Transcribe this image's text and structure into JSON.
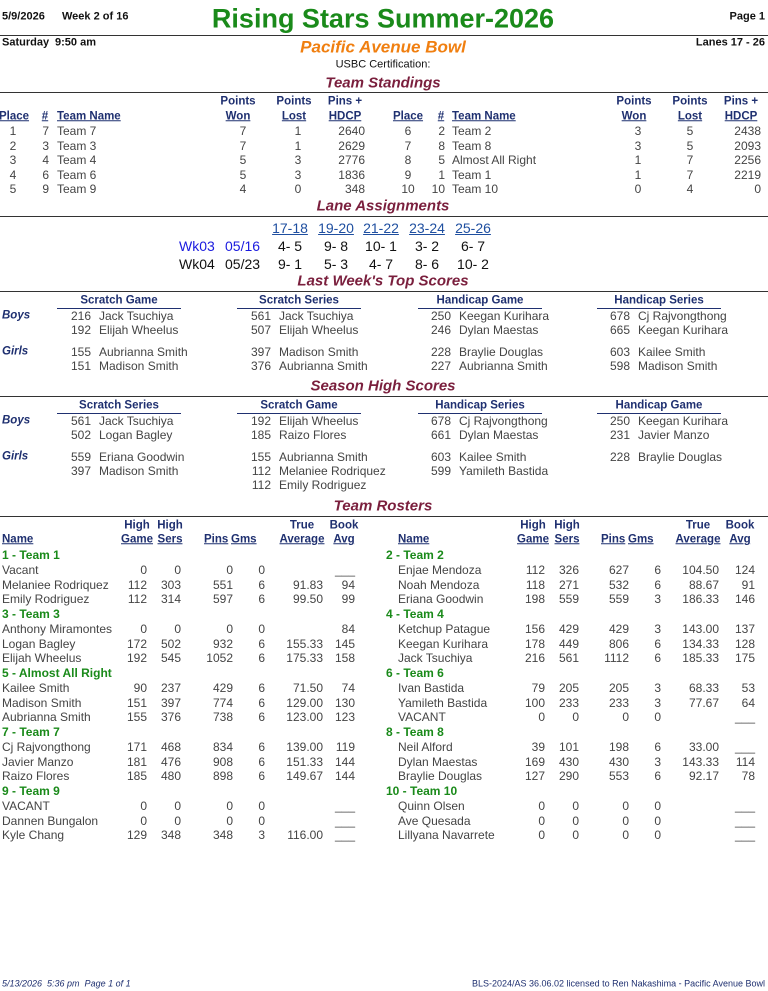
{
  "header": {
    "date": "5/9/2026",
    "week": "Week 2 of 16",
    "title": "Rising Stars Summer-2026",
    "page": "Page 1",
    "day": "Saturday",
    "time": "9:50 am",
    "center": "Pacific Avenue Bowl",
    "lanes": "Lanes 17 - 26",
    "certification": "USBC Certification:"
  },
  "standings": {
    "title": "Team Standings",
    "headers": [
      [
        "Place"
      ],
      [
        "#"
      ],
      [
        "Team Name"
      ],
      [
        "Points",
        "Won"
      ],
      [
        "Points",
        "Lost"
      ],
      [
        "Pins +",
        "HDCP"
      ]
    ],
    "left": [
      [
        "1",
        "7",
        "Team 7",
        "7",
        "1",
        "2640"
      ],
      [
        "2",
        "3",
        "Team 3",
        "7",
        "1",
        "2629"
      ],
      [
        "3",
        "4",
        "Team 4",
        "5",
        "3",
        "2776"
      ],
      [
        "4",
        "6",
        "Team 6",
        "5",
        "3",
        "1836"
      ],
      [
        "5",
        "9",
        "Team 9",
        "4",
        "0",
        "348"
      ]
    ],
    "right": [
      [
        "6",
        "2",
        "Team 2",
        "3",
        "5",
        "2438"
      ],
      [
        "7",
        "8",
        "Team 8",
        "3",
        "5",
        "2093"
      ],
      [
        "8",
        "5",
        "Almost All Right",
        "1",
        "7",
        "2256"
      ],
      [
        "9",
        "1",
        "Team 1",
        "1",
        "7",
        "2219"
      ],
      [
        "10",
        "10",
        "Team 10",
        "0",
        "4",
        "0"
      ]
    ]
  },
  "lanes": {
    "title": "Lane Assignments",
    "headers": [
      "17-18",
      "19-20",
      "21-22",
      "23-24",
      "25-26"
    ],
    "rows": [
      {
        "week": "Wk03",
        "date": "05/16",
        "pairs": [
          "4- 5",
          "9- 8",
          "10- 1",
          "3- 2",
          "6- 7"
        ]
      },
      {
        "week": "Wk04",
        "date": "05/23",
        "pairs": [
          "9- 1",
          "5- 3",
          "4- 7",
          "8- 6",
          "10- 2"
        ]
      }
    ]
  },
  "last_week": {
    "title": "Last Week's Top Scores",
    "headers": [
      "Scratch Game",
      "Scratch Series",
      "Handicap Game",
      "Handicap Series"
    ],
    "groups": [
      {
        "label": "Boys",
        "columns": [
          [
            [
              "216",
              "Jack Tsuchiya"
            ],
            [
              "192",
              "Elijah Wheelus"
            ]
          ],
          [
            [
              "561",
              "Jack Tsuchiya"
            ],
            [
              "507",
              "Elijah Wheelus"
            ]
          ],
          [
            [
              "250",
              "Keegan Kurihara"
            ],
            [
              "246",
              "Dylan Maestas"
            ]
          ],
          [
            [
              "678",
              "Cj Rajvongthong"
            ],
            [
              "665",
              "Keegan Kurihara"
            ]
          ]
        ]
      },
      {
        "label": "Girls",
        "columns": [
          [
            [
              "155",
              "Aubrianna Smith"
            ],
            [
              "151",
              "Madison Smith"
            ]
          ],
          [
            [
              "397",
              "Madison Smith"
            ],
            [
              "376",
              "Aubrianna Smith"
            ]
          ],
          [
            [
              "228",
              "Braylie Douglas"
            ],
            [
              "227",
              "Aubrianna Smith"
            ]
          ],
          [
            [
              "603",
              "Kailee Smith"
            ],
            [
              "598",
              "Madison Smith"
            ]
          ]
        ]
      }
    ]
  },
  "season_high": {
    "title": "Season High Scores",
    "headers": [
      "Scratch Series",
      "Scratch Game",
      "Handicap Series",
      "Handicap Game"
    ],
    "groups": [
      {
        "label": "Boys",
        "columns": [
          [
            [
              "561",
              "Jack Tsuchiya"
            ],
            [
              "502",
              "Logan Bagley"
            ]
          ],
          [
            [
              "192",
              "Elijah Wheelus"
            ],
            [
              "185",
              "Raizo Flores"
            ]
          ],
          [
            [
              "678",
              "Cj Rajvongthong"
            ],
            [
              "661",
              "Dylan Maestas"
            ]
          ],
          [
            [
              "250",
              "Keegan Kurihara"
            ],
            [
              "231",
              "Javier Manzo"
            ]
          ]
        ]
      },
      {
        "label": "Girls",
        "columns": [
          [
            [
              "559",
              "Eriana Goodwin"
            ],
            [
              "397",
              "Madison Smith"
            ]
          ],
          [
            [
              "155",
              "Aubrianna Smith"
            ],
            [
              "112",
              "Melaniee Rodriquez"
            ],
            [
              "112",
              "Emily Rodriguez"
            ]
          ],
          [
            [
              "603",
              "Kailee Smith"
            ],
            [
              "599",
              "Yamileth Bastida"
            ]
          ],
          [
            [
              "228",
              "Braylie Douglas"
            ]
          ]
        ]
      }
    ]
  },
  "rosters": {
    "title": "Team Rosters",
    "headers": [
      [
        "Name"
      ],
      [
        "High",
        "Game"
      ],
      [
        "High",
        "Sers"
      ],
      [
        "Pins"
      ],
      [
        "Gms"
      ],
      [
        "True",
        "Average"
      ],
      [
        "Book",
        "Avg"
      ]
    ],
    "left": [
      {
        "team": "1 - Team 1",
        "players": [
          [
            "Vacant",
            "0",
            "0",
            "0",
            "0",
            null,
            "___"
          ],
          [
            "Melaniee Rodriquez",
            "112",
            "303",
            "551",
            "6",
            "91.83",
            "94"
          ],
          [
            "Emily Rodriguez",
            "112",
            "314",
            "597",
            "6",
            "99.50",
            "99"
          ]
        ]
      },
      {
        "team": "3 - Team 3",
        "players": [
          [
            "Anthony Miramontes",
            "0",
            "0",
            "0",
            "0",
            null,
            "84"
          ],
          [
            "Logan Bagley",
            "172",
            "502",
            "932",
            "6",
            "155.33",
            "145"
          ],
          [
            "Elijah Wheelus",
            "192",
            "545",
            "1052",
            "6",
            "175.33",
            "158"
          ]
        ]
      },
      {
        "team": "5 - Almost All Right",
        "players": [
          [
            "Kailee Smith",
            "90",
            "237",
            "429",
            "6",
            "71.50",
            "74"
          ],
          [
            "Madison Smith",
            "151",
            "397",
            "774",
            "6",
            "129.00",
            "130"
          ],
          [
            "Aubrianna Smith",
            "155",
            "376",
            "738",
            "6",
            "123.00",
            "123"
          ]
        ]
      },
      {
        "team": "7 - Team 7",
        "players": [
          [
            "Cj Rajvongthong",
            "171",
            "468",
            "834",
            "6",
            "139.00",
            "119"
          ],
          [
            "Javier Manzo",
            "181",
            "476",
            "908",
            "6",
            "151.33",
            "144"
          ],
          [
            "Raizo Flores",
            "185",
            "480",
            "898",
            "6",
            "149.67",
            "144"
          ]
        ]
      },
      {
        "team": "9 - Team 9",
        "players": [
          [
            "VACANT",
            "0",
            "0",
            "0",
            "0",
            null,
            "___"
          ],
          [
            "Dannen Bungalon",
            "0",
            "0",
            "0",
            "0",
            null,
            "___"
          ],
          [
            "Kyle Chang",
            "129",
            "348",
            "348",
            "3",
            "116.00",
            "___"
          ]
        ]
      }
    ],
    "right": [
      {
        "team": "2 - Team 2",
        "players": [
          [
            "Enjae Mendoza",
            "112",
            "326",
            "627",
            "6",
            "104.50",
            "124"
          ],
          [
            "Noah Mendoza",
            "118",
            "271",
            "532",
            "6",
            "88.67",
            "91"
          ],
          [
            "Eriana Goodwin",
            "198",
            "559",
            "559",
            "3",
            "186.33",
            "146"
          ]
        ]
      },
      {
        "team": "4 - Team 4",
        "players": [
          [
            "Ketchup Patague",
            "156",
            "429",
            "429",
            "3",
            "143.00",
            "137"
          ],
          [
            "Keegan Kurihara",
            "178",
            "449",
            "806",
            "6",
            "134.33",
            "128"
          ],
          [
            "Jack Tsuchiya",
            "216",
            "561",
            "1112",
            "6",
            "185.33",
            "175"
          ]
        ]
      },
      {
        "team": "6 - Team 6",
        "players": [
          [
            "Ivan Bastida",
            "79",
            "205",
            "205",
            "3",
            "68.33",
            "53"
          ],
          [
            "Yamileth Bastida",
            "100",
            "233",
            "233",
            "3",
            "77.67",
            "64"
          ],
          [
            "VACANT",
            "0",
            "0",
            "0",
            "0",
            null,
            "___"
          ]
        ]
      },
      {
        "team": "8 - Team 8",
        "players": [
          [
            "Neil Alford",
            "39",
            "101",
            "198",
            "6",
            "33.00",
            "___"
          ],
          [
            "Dylan Maestas",
            "169",
            "430",
            "430",
            "3",
            "143.33",
            "114"
          ],
          [
            "Braylie Douglas",
            "127",
            "290",
            "553",
            "6",
            "92.17",
            "78"
          ]
        ]
      },
      {
        "team": "10 - Team 10",
        "players": [
          [
            "Quinn Olsen",
            "0",
            "0",
            "0",
            "0",
            null,
            "___"
          ],
          [
            "Ave Quesada",
            "0",
            "0",
            "0",
            "0",
            null,
            "___"
          ],
          [
            "Lillyana Navarrete",
            "0",
            "0",
            "0",
            "0",
            null,
            "___"
          ]
        ]
      }
    ]
  },
  "footer": {
    "left": "5/13/2026  5:36 pm  Page 1 of 1",
    "right": "BLS-2024/AS 36.06.02 licensed to Ren Nakashima - Pacific Avenue Bowl"
  }
}
